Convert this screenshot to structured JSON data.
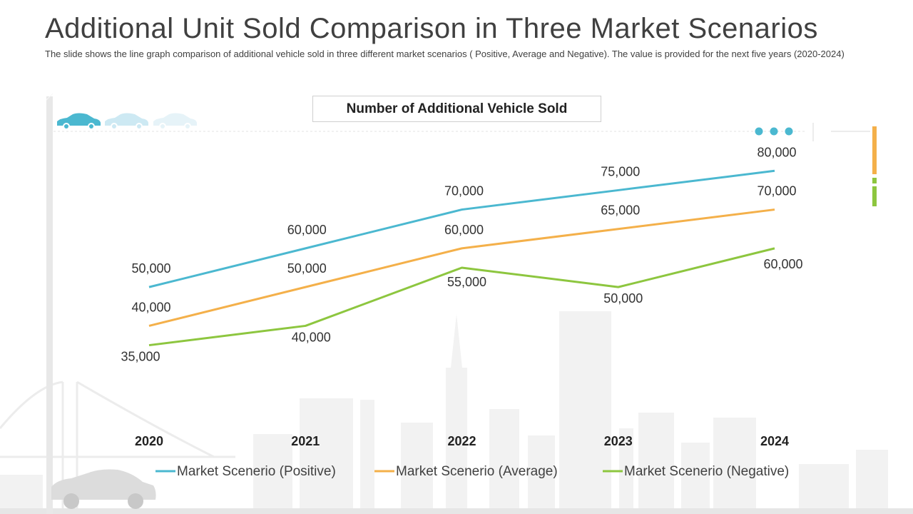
{
  "slide": {
    "title": "Additional Unit Sold Comparison in Three Market Scenarios",
    "subtitle": "The slide shows the line graph comparison of additional vehicle sold in three different market scenarios ( Positive, Average and Negative). The value is provided for the next five years (2020-2024)"
  },
  "colors": {
    "positive": "#4BB8D0",
    "average": "#F4B04A",
    "negative": "#8DC63F",
    "skyline": "#f2f2f2",
    "car_light": "#cde9f3"
  },
  "icons": [
    "car-icon",
    "car-icon",
    "car-icon",
    "dots-icon",
    "car-silhouette",
    "city-skyline"
  ],
  "chart_data": {
    "type": "line",
    "title": "Number of Additional Vehicle Sold",
    "categories": [
      "2020",
      "2021",
      "2022",
      "2023",
      "2024"
    ],
    "ylim": [
      20000,
      90000
    ],
    "grid": false,
    "legend_position": "bottom",
    "series": [
      {
        "name": "Market Scenerio (Positive)",
        "values": [
          50000,
          60000,
          70000,
          75000,
          80000
        ],
        "labels": [
          "50,000",
          "60,000",
          "70,000",
          "75,000",
          "80,000"
        ],
        "color_key": "positive"
      },
      {
        "name": "Market Scenerio (Average)",
        "values": [
          40000,
          50000,
          60000,
          65000,
          70000
        ],
        "labels": [
          "40,000",
          "50,000",
          "60,000",
          "65,000",
          "70,000"
        ],
        "color_key": "average"
      },
      {
        "name": "Market Scenerio (Negative)",
        "values": [
          35000,
          40000,
          55000,
          50000,
          60000
        ],
        "labels": [
          "35,000",
          "40,000",
          "55,000",
          "50,000",
          "60,000"
        ],
        "color_key": "negative"
      }
    ]
  }
}
